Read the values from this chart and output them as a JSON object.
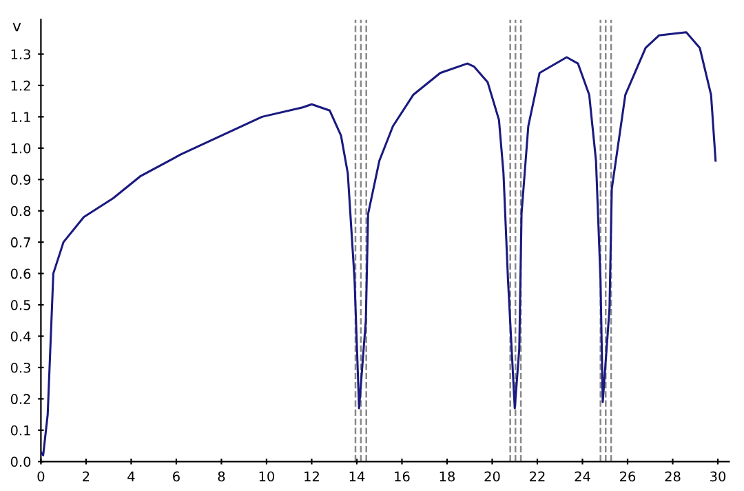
{
  "chart_data": {
    "type": "line",
    "ylabel": "v",
    "x": [
      0.0,
      0.1,
      0.3,
      0.55,
      1.0,
      1.9,
      3.2,
      4.4,
      6.2,
      8.0,
      9.8,
      11.6,
      12.0,
      12.8,
      13.3,
      13.6,
      13.9,
      14.1,
      14.4,
      14.5,
      15.0,
      15.6,
      16.5,
      17.7,
      18.9,
      19.2,
      19.8,
      20.3,
      20.5,
      20.7,
      21.0,
      21.2,
      21.3,
      21.6,
      22.1,
      23.3,
      23.8,
      24.3,
      24.6,
      24.8,
      24.9,
      25.2,
      25.3,
      25.9,
      26.8,
      27.4,
      28.6,
      29.2,
      29.7,
      29.9
    ],
    "series": [
      {
        "color": "#1a1a80",
        "values": [
          0.03,
          0.02,
          0.15,
          0.6,
          0.7,
          0.78,
          0.84,
          0.91,
          0.98,
          1.04,
          1.1,
          1.13,
          1.14,
          1.12,
          1.04,
          0.92,
          0.58,
          0.17,
          0.45,
          0.79,
          0.96,
          1.07,
          1.17,
          1.24,
          1.27,
          1.26,
          1.21,
          1.09,
          0.92,
          0.58,
          0.17,
          0.36,
          0.79,
          1.07,
          1.24,
          1.29,
          1.27,
          1.17,
          0.96,
          0.58,
          0.19,
          0.49,
          0.87,
          1.17,
          1.32,
          1.36,
          1.37,
          1.32,
          1.17,
          0.96
        ]
      }
    ],
    "xlim": [
      0,
      30.5
    ],
    "ylim": [
      0,
      1.41
    ],
    "xticks": [
      0,
      2,
      4,
      6,
      8,
      10,
      12,
      14,
      16,
      18,
      20,
      22,
      24,
      26,
      28,
      30
    ],
    "yticks": [
      {
        "value": 0,
        "label": "0.0"
      },
      0.1,
      0.2,
      0.3,
      0.4,
      0.5,
      0.6,
      0.7,
      0.8,
      0.9,
      {
        "value": 1,
        "label": "1.0"
      },
      1.1,
      1.2,
      1.3
    ],
    "ref_lines": [
      {
        "axis": "x",
        "value": 13.94,
        "color": "#888888",
        "line_style": "dashed"
      },
      {
        "axis": "x",
        "value": 14.18,
        "color": "#888888",
        "line_style": "dashed"
      },
      {
        "axis": "x",
        "value": 14.42,
        "color": "#888888",
        "line_style": "dashed"
      },
      {
        "axis": "x",
        "value": 20.8,
        "color": "#888888",
        "line_style": "dashed"
      },
      {
        "axis": "x",
        "value": 21.03,
        "color": "#888888",
        "line_style": "dashed"
      },
      {
        "axis": "x",
        "value": 21.27,
        "color": "#888888",
        "line_style": "dashed"
      },
      {
        "axis": "x",
        "value": 24.8,
        "color": "#888888",
        "line_style": "dashed"
      },
      {
        "axis": "x",
        "value": 25.03,
        "color": "#888888",
        "line_style": "dashed"
      },
      {
        "axis": "x",
        "value": 25.27,
        "color": "#888888",
        "line_style": "dashed"
      }
    ],
    "grid": false,
    "line_style": "solid"
  }
}
